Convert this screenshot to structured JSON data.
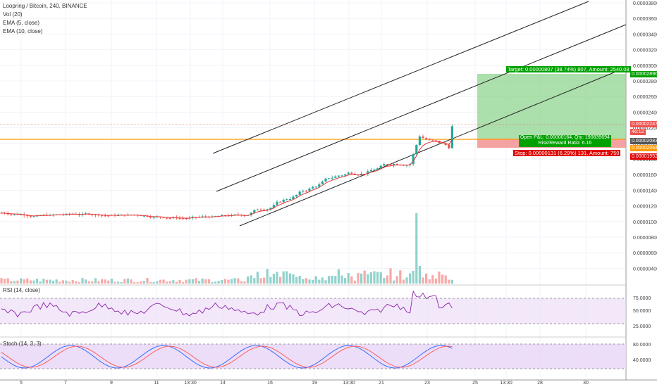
{
  "header": {
    "symbol": "Loopring / Bitcoin, 240, BINANCE",
    "vol": "Vol (20)",
    "ema5": "EMA (5, close)",
    "ema10": "EMA (10, close)"
  },
  "indicators": {
    "rsi": "RSI (14, close)",
    "stoch": "Stoch (14, 3, 3)"
  },
  "price_axis": [
    "0.00003800",
    "0.00003600",
    "0.00003400",
    "0.00003200",
    "0.00003000",
    "0.00002800",
    "0.00002600",
    "0.00002400",
    "0.00002200",
    "0.00002000",
    "0.00001800",
    "0.00001600",
    "0.00001400",
    "0.00001200",
    "0.00001000",
    "0.00000800",
    "0.00000600",
    "0.00000400"
  ],
  "rsi_axis": [
    "75.0000",
    "50.0000",
    "25.0000"
  ],
  "stoch_axis": [
    "80.0000",
    "40.0000"
  ],
  "time_axis": [
    "5",
    "7",
    "9",
    "11",
    "13:30",
    "14",
    "16",
    "19",
    "13:30",
    "21",
    "23",
    "25",
    "13:30",
    "28",
    "30"
  ],
  "price_tags": {
    "target": "0.00002890",
    "current": "0.00002247",
    "countdown": "46:12",
    "entry": "0.00002083",
    "entry_low": "0.00002064",
    "stop": "0.00001952"
  },
  "position": {
    "target_label": "Target: 0.00000807 (38.74%) 807, Amount: 2540.08",
    "pnl_label": "Open P&L: 0.00000164, Qty: 190839694",
    "rr_label": "Risk/Reward Ratio: 6.16",
    "stop_label": "Stop: 0.00000131 (6.29%) 131, Amount: 750"
  },
  "colors": {
    "up": "#26a69a",
    "down": "#ef5350",
    "ema": "#e53935",
    "entry_line": "#ff9800",
    "target_zone": "#8fd48f",
    "stop_zone": "#f28b8b",
    "rsi_line": "#8e24aa",
    "stoch_k": "#2962ff",
    "stoch_d": "#ff5252",
    "indicator_band": "#ead9f7"
  }
}
